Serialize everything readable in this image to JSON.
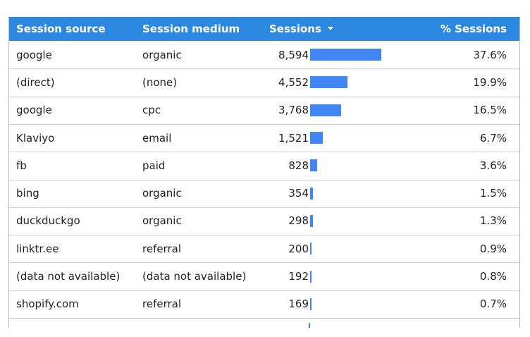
{
  "table": {
    "header": [
      "Session source",
      "Session medium",
      "Sessions",
      "% Sessions"
    ],
    "rows": [
      {
        "source": "google",
        "medium": "organic",
        "sessions": {
          "value": 8594,
          "label": "8,594"
        },
        "pct": "37.6%"
      },
      {
        "source": "(direct)",
        "medium": "(none)",
        "sessions": {
          "value": 4552,
          "label": "4,552"
        },
        "pct": "19.9%"
      },
      {
        "source": "google",
        "medium": "cpc",
        "sessions": {
          "value": 3768,
          "label": "3,768"
        },
        "pct": "16.5%"
      },
      {
        "source": "Klaviyo",
        "medium": "email",
        "sessions": {
          "value": 1521,
          "label": "1,521"
        },
        "pct": "6.7%"
      },
      {
        "source": "fb",
        "medium": "paid",
        "sessions": {
          "value": 828,
          "label": "828"
        },
        "pct": "3.6%"
      },
      {
        "source": "bing",
        "medium": "organic",
        "sessions": {
          "value": 354,
          "label": "354"
        },
        "pct": "1.5%"
      },
      {
        "source": "duckduckgo",
        "medium": "organic",
        "sessions": {
          "value": 298,
          "label": "298"
        },
        "pct": "1.3%"
      },
      {
        "source": "linktr.ee",
        "medium": "referral",
        "sessions": {
          "value": 200,
          "label": "200"
        },
        "pct": "0.9%"
      },
      {
        "source": "(data not available)",
        "medium": "(data not available)",
        "sessions": {
          "value": 192,
          "label": "192"
        },
        "pct": "0.8%"
      },
      {
        "source": "shopify.com",
        "medium": "referral",
        "sessions": {
          "value": 169,
          "label": "169"
        },
        "pct": "0.7%"
      }
    ]
  }
}
